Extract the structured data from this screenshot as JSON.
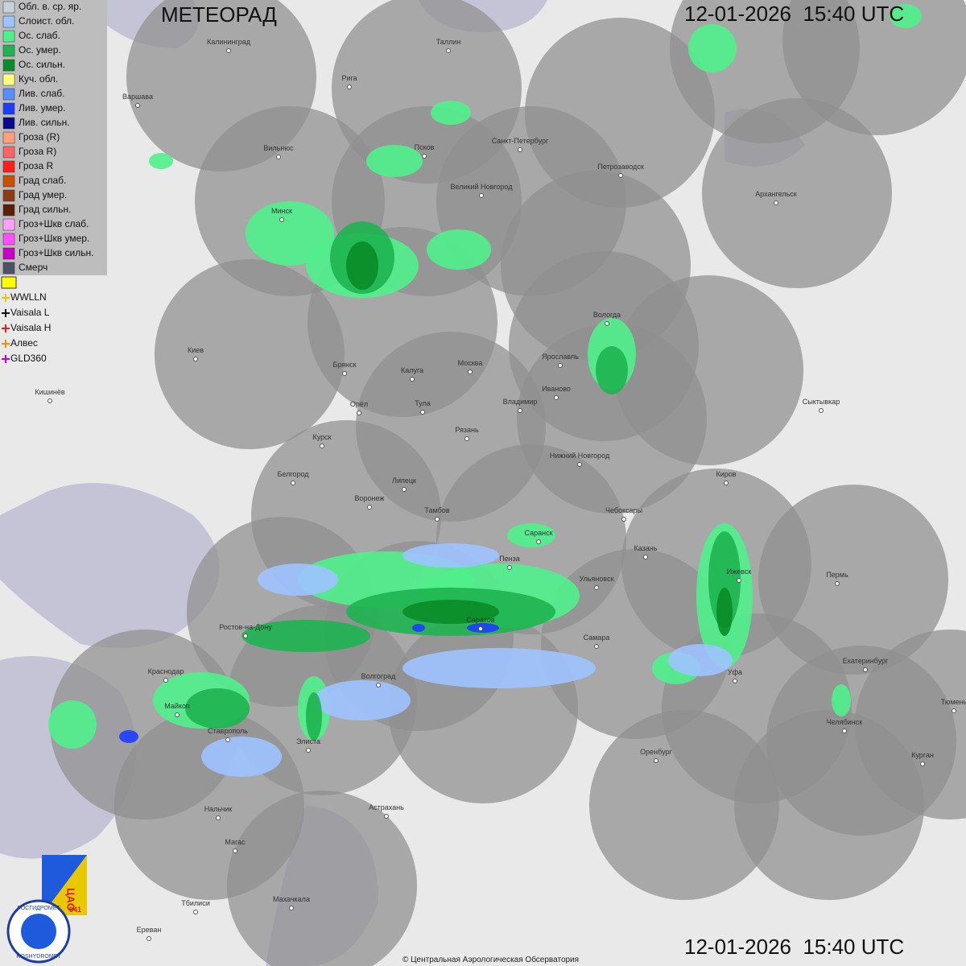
{
  "header": {
    "title": "МЕТЕОРАД",
    "timestamps": [
      "12-01-2026  15:40 UTC",
      "12-01-2026  15:40 UTC"
    ]
  },
  "legend": {
    "items": [
      {
        "label": "Обл. в. ср. яр.",
        "color": "#c8d2dc"
      },
      {
        "label": "Слоист. обл.",
        "color": "#9ec3ff"
      },
      {
        "label": "Ос. слаб.",
        "color": "#50f08c"
      },
      {
        "label": "Ос. умер.",
        "color": "#1eb450"
      },
      {
        "label": "Ос. сильн.",
        "color": "#0a8c28"
      },
      {
        "label": "Куч. обл.",
        "color": "#ffff80"
      },
      {
        "label": "Лив. слаб.",
        "color": "#5a8cff"
      },
      {
        "label": "Лив. умер.",
        "color": "#1e3cff"
      },
      {
        "label": "Лив. сильн.",
        "color": "#0a0a8c"
      },
      {
        "label": "Гроза (R)",
        "color": "#ffa080"
      },
      {
        "label": "Гроза R)",
        "color": "#ff6464"
      },
      {
        "label": "Гроза R",
        "color": "#ff1e1e"
      },
      {
        "label": "Град слаб.",
        "color": "#c85000"
      },
      {
        "label": "Град умер.",
        "color": "#8c3c14"
      },
      {
        "label": "Град сильн.",
        "color": "#5a1e0a"
      },
      {
        "label": "Гроз+Шкв слаб.",
        "color": "#ffa0ff"
      },
      {
        "label": "Гроз+Шкв умер.",
        "color": "#ff50ff"
      },
      {
        "label": "Гроз+Шкв сильн.",
        "color": "#c800c8"
      },
      {
        "label": "Смерч",
        "color": "#505064"
      }
    ],
    "lightning": [
      {
        "label": "WWLLN",
        "color": "#e6c800"
      },
      {
        "label": "Vaisala L",
        "color": "#111111"
      },
      {
        "label": "Vaisala H",
        "color": "#e61e1e"
      },
      {
        "label": "Алвес",
        "color": "#ff8c00"
      },
      {
        "label": "GLD360",
        "color": "#c800c8"
      }
    ]
  },
  "cities": [
    "Калининград",
    "Таллин",
    "Рига",
    "Варшава",
    "Вильнюс",
    "Псков",
    "Санкт-Петербург",
    "Петрозаводск",
    "Великий Новгород",
    "Архангельск",
    "Минск",
    "Вологда",
    "Киев",
    "Ярославль",
    "Брянск",
    "Калуга",
    "Москва",
    "Иваново",
    "Кишинёв",
    "Тула",
    "Владимир",
    "Сыктывкар",
    "Орёл",
    "Рязань",
    "Курск",
    "Нижний Новгород",
    "Белгород",
    "Киров",
    "Липецк",
    "Воронеж",
    "Тамбов",
    "Чебоксары",
    "Саранск",
    "Казань",
    "Пенза",
    "Пермь",
    "Ижевск",
    "Ульяновск",
    "Ростов-на-Дону",
    "Саратов",
    "Самара",
    "Екатеринбург",
    "Краснодар",
    "Волгоград",
    "Уфа",
    "Тюмень",
    "Майкоп",
    "Челябинск",
    "Ставрополь",
    "Элиста",
    "Оренбург",
    "Курган",
    "Нальчик",
    "Астрахань",
    "Магас",
    "Тбилиси",
    "Махачкала",
    "Ереван"
  ],
  "logo": {
    "cao": "ЦАО",
    "number": "941",
    "name_ru": "РОСГИДРОМЕТ",
    "name_en": "ROSHYDROMET"
  },
  "footer": {
    "copyright": "© Центральная Аэрологическая Обсерватория"
  }
}
